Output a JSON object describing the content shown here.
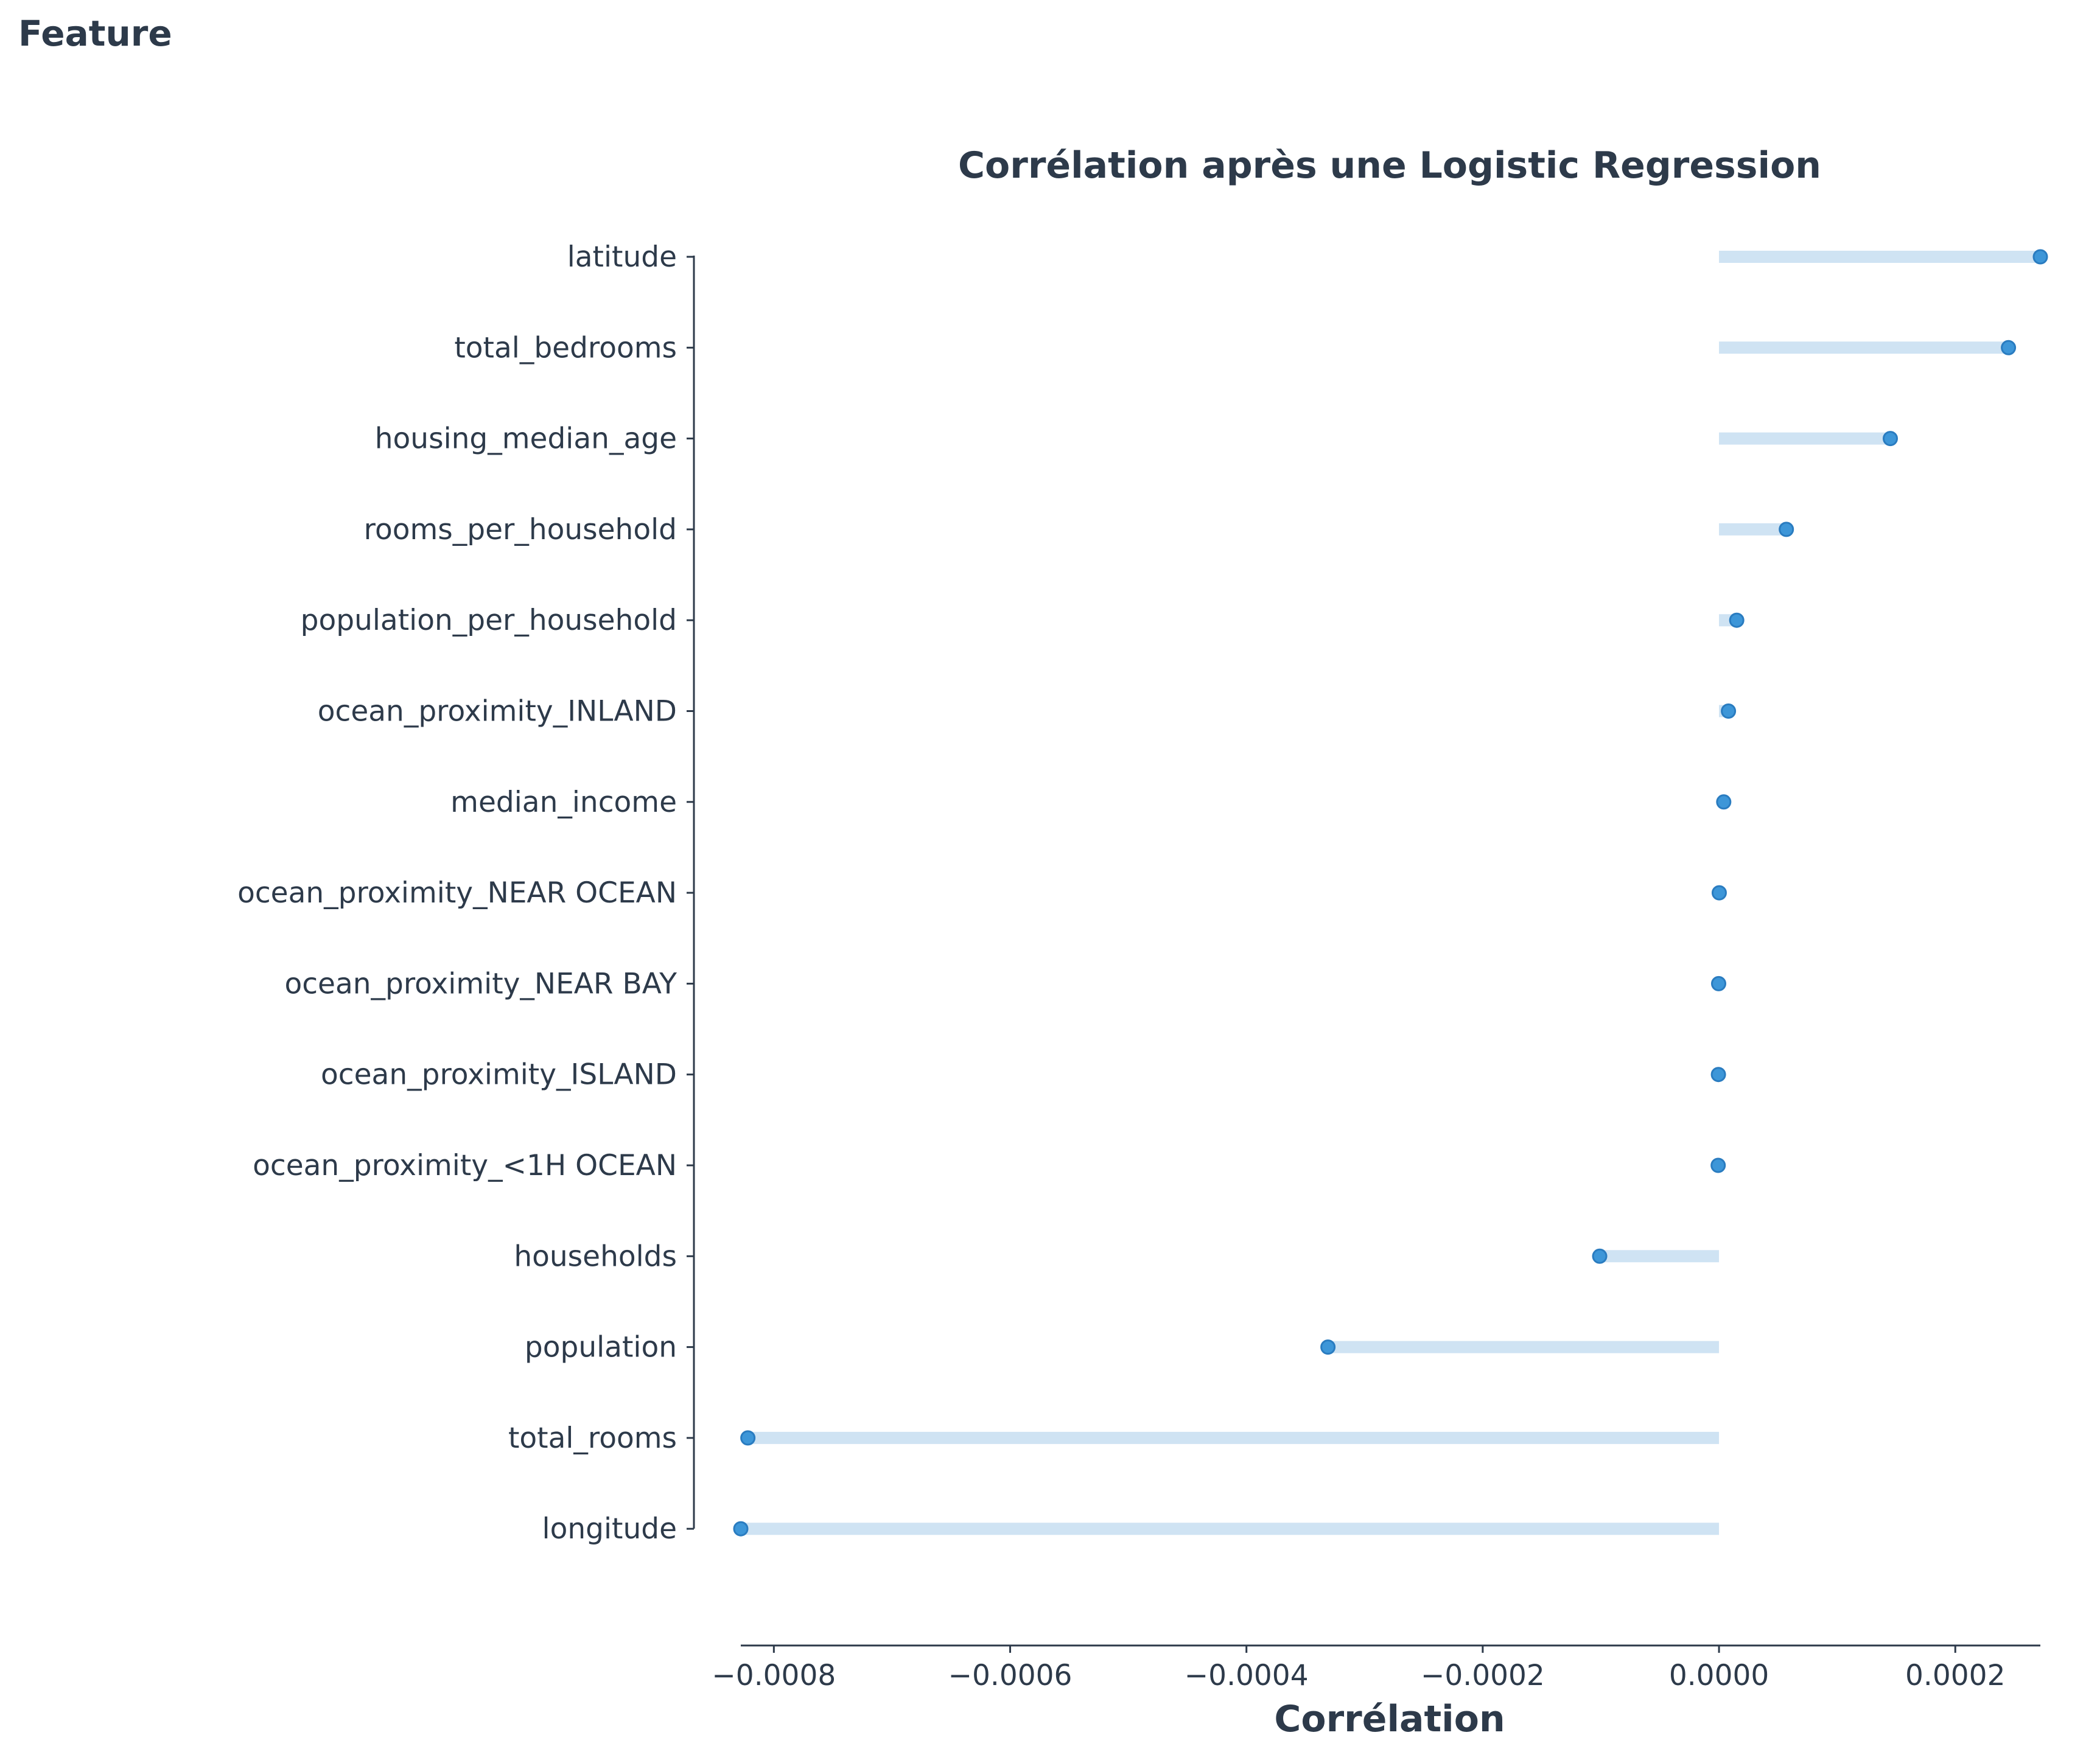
{
  "chart_data": {
    "type": "lollipop",
    "orientation": "horizontal",
    "title": "Corrélation après une Logistic Regression",
    "ylabel": "Feature",
    "xlabel": "Corrélation",
    "xlim": [
      -0.000828,
      0.000272
    ],
    "xticks": [
      -0.0008,
      -0.0006,
      -0.0004,
      -0.0002,
      0.0,
      0.0002
    ],
    "xtick_labels": [
      "−0.0008",
      "−0.0006",
      "−0.0004",
      "−0.0002",
      "0.0000",
      "0.0002"
    ],
    "grid": false,
    "colors": {
      "stem": "#cfe3f3",
      "marker": "#3d96d8",
      "marker_edge": "#2a7cc0",
      "axis": "#2d3a4a"
    },
    "categories": [
      "latitude",
      "total_bedrooms",
      "housing_median_age",
      "rooms_per_household",
      "population_per_household",
      "ocean_proximity_INLAND",
      "median_income",
      "ocean_proximity_NEAR OCEAN",
      "ocean_proximity_NEAR BAY",
      "ocean_proximity_ISLAND",
      "ocean_proximity_<1H OCEAN",
      "households",
      "population",
      "total_rooms",
      "longitude"
    ],
    "values": [
      0.000272,
      0.000245,
      0.000145,
      5.7e-05,
      1.5e-05,
      8e-06,
      4e-06,
      2e-07,
      -3e-07,
      -5e-07,
      -7e-07,
      -0.000101,
      -0.000331,
      -0.000822,
      -0.000828
    ]
  }
}
